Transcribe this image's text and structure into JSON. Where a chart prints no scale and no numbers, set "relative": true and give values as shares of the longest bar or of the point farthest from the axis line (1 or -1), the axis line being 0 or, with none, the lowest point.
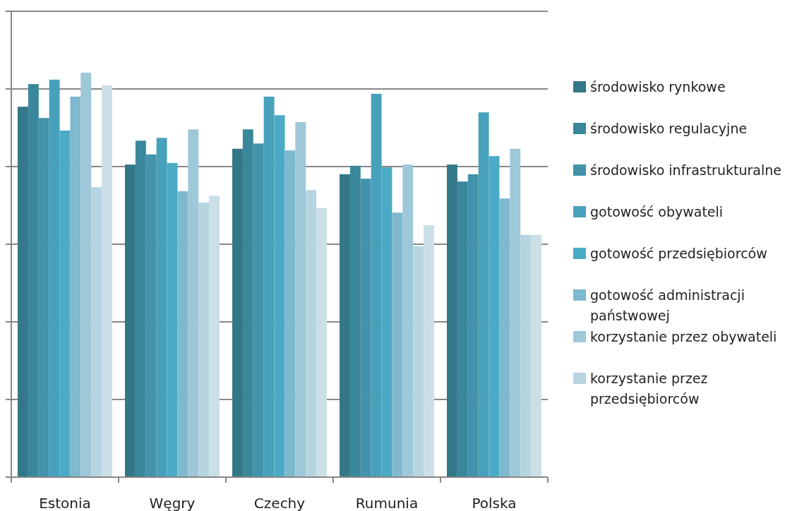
{
  "chart_data": {
    "type": "bar",
    "relative": true,
    "grid": "y",
    "legend": "right",
    "categories": [
      "Estonia",
      "Węgry",
      "Czechy",
      "Rumunia",
      "Polska"
    ],
    "series": [
      {
        "name": "środowisko rynkowe",
        "color": "#337788",
        "values": [
          0.916,
          0.773,
          0.812,
          0.749,
          0.773
        ]
      },
      {
        "name": "środowisko regulacyjne",
        "color": "#39879a",
        "values": [
          0.972,
          0.832,
          0.86,
          0.77,
          0.731
        ]
      },
      {
        "name": "środowisko infrastrukturalne",
        "color": "#4293ab",
        "values": [
          0.888,
          0.798,
          0.825,
          0.738,
          0.749
        ]
      },
      {
        "name": "gotowość obywateli",
        "color": "#48a1bb",
        "values": [
          0.983,
          0.839,
          0.941,
          0.948,
          0.902
        ]
      },
      {
        "name": "gotowość przedsiębiorców",
        "color": "#4babc6",
        "values": [
          0.857,
          0.777,
          0.895,
          0.766,
          0.794
        ]
      },
      {
        "name": "gotowość administracji państwowej",
        "color": "#7eb9cf",
        "values": [
          0.941,
          0.707,
          0.808,
          0.654,
          0.689
        ]
      },
      {
        "name": "korzystanie przez obywateli",
        "color": "#9ec8d8",
        "values": [
          1,
          0.86,
          0.878,
          0.773,
          0.812
        ]
      },
      {
        "name": "korzystanie przez przedsiębiorców",
        "color": "#b7d5e0",
        "values": [
          0.717,
          0.679,
          0.71,
          0.571,
          0.599
        ]
      },
      {
        "color": "#cbdfe7",
        "values": [
          0.969,
          0.696,
          0.665,
          0.623,
          0.599
        ]
      }
    ]
  }
}
